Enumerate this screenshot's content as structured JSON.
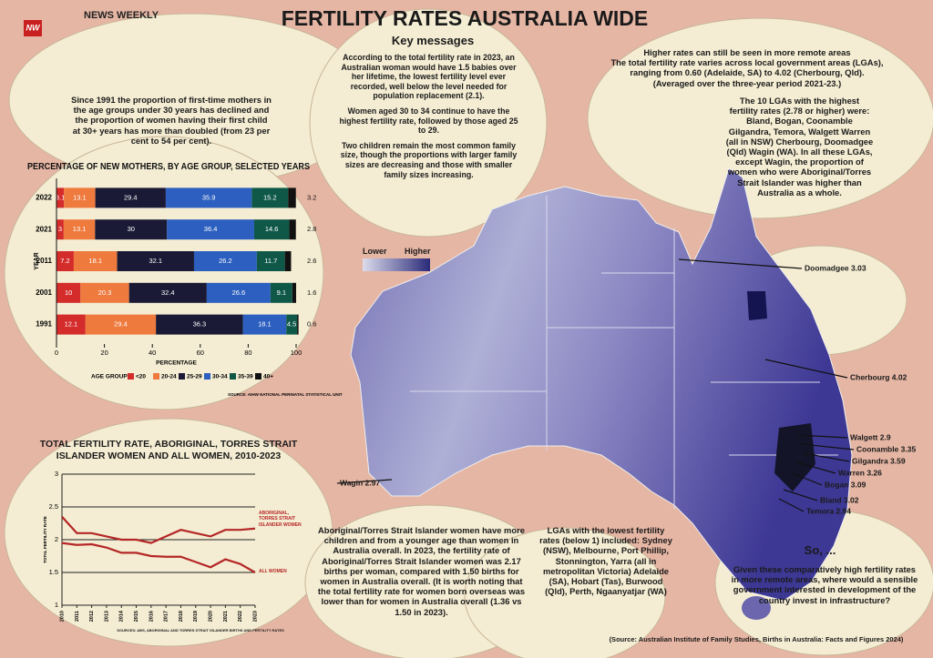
{
  "header": {
    "logo": "NW",
    "brand": "NEWS WEEKLY",
    "title": "FERTILITY RATES AUSTRALIA WIDE",
    "key_messages_heading": "Key messages"
  },
  "key_messages": [
    "According to the total fertility rate in 2023, an Australian woman would have 1.5 babies over her lifetime, the lowest fertility level ever recorded, well below the level needed for population replacement (2.1).",
    "Women aged 30 to 34 continue to have the highest fertility rate, followed by those aged 25 to 29.",
    "Two children remain the most common family size, though the proportions with larger family sizes are decreasing and those with smaller family sizes increasing."
  ],
  "intro": "Since 1991 the proportion of first-time mothers in the age groups under 30 years has declined and the proportion of women having their first child at 30+ years has more than doubled (from 23 per cent to 54 per cent).",
  "remote_areas": {
    "heading": "Higher rates can still be seen in more remote areas",
    "text": "The total fertility rate varies across local government areas (LGAs), ranging from 0.60 (Adelaide, SA) to 4.02 (Cherbourg, Qld). (Averaged over the three-year period 2021-23.)"
  },
  "top_lgas": "The 10 LGAs with the highest fertility rates (2.78 or higher) were: Bland, Bogan, Coonamble Gilgandra, Temora, Walgett Warren (all in NSW) Cherbourg, Doomadgee (Qld) Wagin (WA). In all these LGAs, except Wagin, the proportion of women who were Aboriginal/Torres Strait Islander was higher than Australia as a whole.",
  "aboriginal_note": "Aboriginal/Torres Strait Islander women have more children and from a younger age than women in Australia overall. In 2023, the fertility rate of Aboriginal/Torres Strait Islander women was 2.17 births per woman, compared with 1.50 births for women in Australia overall. (It is worth noting that the total fertility rate for women born overseas was lower than for women in Australia overall (1.36 vs 1.50 in 2023).",
  "lowest_lgas": "LGAs with the lowest fertility rates (below 1) included: Sydney (NSW), Melbourne, Port Phillip, Stonnington, Yarra (all in metropolitan Victoria) Adelaide (SA), Hobart (Tas), Burwood (Qld), Perth, Ngaanyatjar (WA)",
  "closing": {
    "heading": "So, ...",
    "text": "Given these comparatively high fertility rates in more remote areas, where would a sensible government interested in development of the country invest in infrastructure?"
  },
  "source": "(Source: Australian Institute of Family Studies, Births in Australia: Facts and Figures 2024)",
  "map": {
    "legend": {
      "low": "Lower",
      "high": "Higher"
    },
    "labels": [
      "Doomadgee 3.03",
      "Cherbourg 4.02",
      "Wagin 2.97",
      "Walgett 2.9",
      "Coonamble 3.35",
      "Gilgandra 3.59",
      "Warren 3.26",
      "Bogan 3.09",
      "Bland 3.02",
      "Temora 2.94"
    ]
  },
  "chart_data": [
    {
      "type": "bar",
      "orientation": "horizontal",
      "stacked": true,
      "title": "PERCENTAGE OF NEW MOTHERS, BY AGE GROUP, SELECTED YEARS",
      "categories": [
        "2022",
        "2021",
        "2011",
        "2001",
        "1991"
      ],
      "series": [
        {
          "name": "<20",
          "color": "#d42b2b",
          "values": [
            3.1,
            3,
            7.2,
            10,
            12.1
          ]
        },
        {
          "name": "20-24",
          "color": "#ee7a3e",
          "values": [
            13.1,
            13.1,
            18.1,
            20.3,
            29.4
          ]
        },
        {
          "name": "25-29",
          "color": "#1b1a36",
          "values": [
            29.4,
            30,
            32.1,
            32.4,
            36.3
          ]
        },
        {
          "name": "30-34",
          "color": "#2c5fbf",
          "values": [
            35.9,
            36.4,
            26.2,
            26.6,
            18.1
          ]
        },
        {
          "name": "35-39",
          "color": "#0f5848",
          "values": [
            15.2,
            14.6,
            11.7,
            9.1,
            4.5
          ]
        },
        {
          "name": "40+",
          "color": "#111111",
          "values": [
            3.2,
            2.8,
            2.6,
            1.6,
            0.6
          ]
        }
      ],
      "xlim": [
        0,
        100
      ],
      "xticks": [
        0,
        20,
        40,
        60,
        80,
        100
      ],
      "xlabel": "PERCENTAGE",
      "ylabel": "YEAR",
      "legend_title": "AGE GROUP",
      "source": "SOURCE: AIHW NATIONAL PERINATAL STATISTICAL UNIT"
    },
    {
      "type": "line",
      "title": "TOTAL FERTILITY RATE, ABORIGINAL, TORRES STRAIT ISLANDER WOMEN AND ALL WOMEN, 2010-2023",
      "x": [
        2010,
        2011,
        2012,
        2013,
        2014,
        2015,
        2016,
        2017,
        2018,
        2019,
        2020,
        2021,
        2022,
        2023
      ],
      "series": [
        {
          "name": "ABORIGINAL, TORRES STRAIT ISLANDER WOMEN",
          "color": "#b52626",
          "values": [
            2.35,
            2.1,
            2.1,
            2.05,
            2.0,
            2.0,
            1.95,
            2.05,
            2.15,
            2.1,
            2.05,
            2.15,
            2.15,
            2.17
          ]
        },
        {
          "name": "ALL WOMEN",
          "color": "#b52626",
          "values": [
            1.95,
            1.92,
            1.93,
            1.88,
            1.8,
            1.8,
            1.75,
            1.74,
            1.74,
            1.66,
            1.58,
            1.7,
            1.63,
            1.5
          ]
        }
      ],
      "xlim": [
        2010,
        2023
      ],
      "xticks": [
        2010,
        2011,
        2012,
        2013,
        2014,
        2015,
        2016,
        2017,
        2018,
        2019,
        2020,
        2021,
        2022,
        2023
      ],
      "ylim": [
        1,
        3
      ],
      "yticks": [
        1,
        1.5,
        2,
        2.5,
        3
      ],
      "grid": true,
      "ylabel": "TOTAL FERTILITY RATE",
      "source": "SOURCES: ABS, ABORIGINAL AND TORRES STRAIT ISLANDER BIRTHS AND FERTILITY RATES"
    }
  ]
}
